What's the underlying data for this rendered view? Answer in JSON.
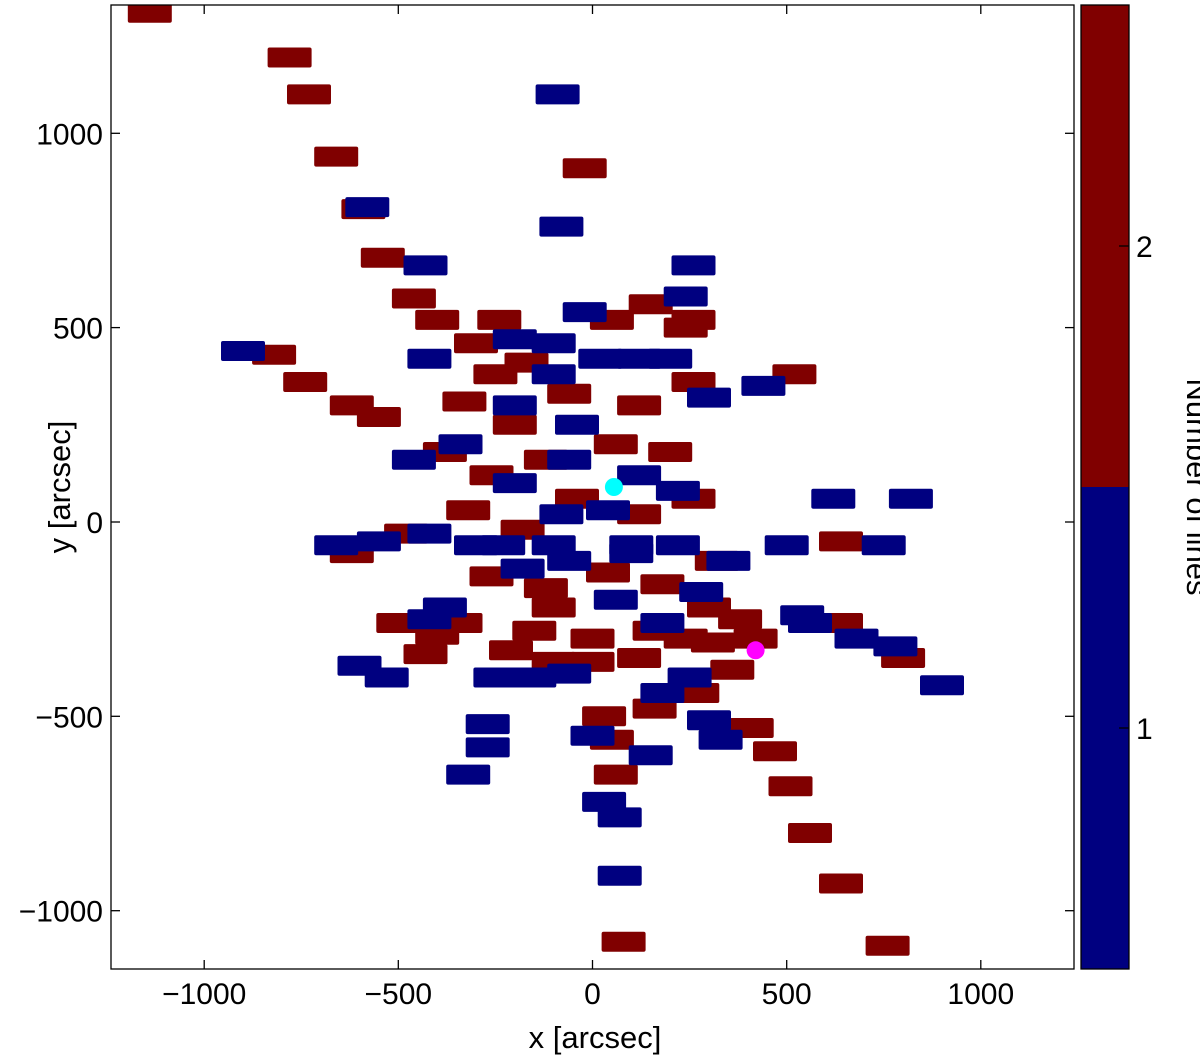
{
  "chart_data": {
    "type": "scatter",
    "title": "",
    "xlabel": "x [arcsec]",
    "ylabel": "y [arcsec]",
    "xlim": [
      -1240,
      1240
    ],
    "ylim": [
      -1150,
      1330
    ],
    "x_ticks": [
      -1000,
      -500,
      0,
      500,
      1000
    ],
    "y_ticks": [
      -1000,
      -500,
      0,
      500,
      1000
    ],
    "x_tick_labels": [
      "−1000",
      "−500",
      "0",
      "500",
      "1000"
    ],
    "y_tick_labels": [
      "−1000",
      "−500",
      "0",
      "500",
      "1000"
    ],
    "grid": false,
    "colorbar": {
      "label": "Number of lines",
      "levels": [
        {
          "value": 1,
          "label": "1",
          "color": "#000080"
        },
        {
          "value": 2,
          "label": "2",
          "color": "#800000"
        }
      ]
    },
    "colors": {
      "one_line": "#000080",
      "two_lines": "#800000"
    },
    "markers": [
      {
        "name": "cyan-marker",
        "x": 55,
        "y": 90,
        "color": "#00ffff"
      },
      {
        "name": "magenta-marker",
        "x": 420,
        "y": -330,
        "color": "#ff00ff"
      }
    ],
    "series": [
      {
        "value": 2,
        "patches": [
          [
            -1140,
            1310
          ],
          [
            -780,
            1195
          ],
          [
            -730,
            1100
          ],
          [
            -660,
            940
          ],
          [
            -590,
            805
          ],
          [
            -540,
            680
          ],
          [
            -460,
            575
          ],
          [
            -300,
            460
          ],
          [
            -250,
            380
          ],
          [
            -170,
            410
          ],
          [
            -330,
            310
          ],
          [
            -200,
            250
          ],
          [
            -60,
            330
          ],
          [
            120,
            300
          ],
          [
            -380,
            180
          ],
          [
            -260,
            120
          ],
          [
            -120,
            160
          ],
          [
            60,
            200
          ],
          [
            200,
            180
          ],
          [
            -320,
            30
          ],
          [
            -180,
            -20
          ],
          [
            -40,
            60
          ],
          [
            120,
            20
          ],
          [
            260,
            60
          ],
          [
            320,
            -100
          ],
          [
            -260,
            -140
          ],
          [
            -120,
            -170
          ],
          [
            40,
            -130
          ],
          [
            180,
            -160
          ],
          [
            300,
            -220
          ],
          [
            380,
            -250
          ],
          [
            420,
            -300
          ],
          [
            360,
            -380
          ],
          [
            -340,
            -260
          ],
          [
            -150,
            -280
          ],
          [
            0,
            -300
          ],
          [
            120,
            -350
          ],
          [
            240,
            -300
          ],
          [
            50,
            520
          ],
          [
            -240,
            520
          ],
          [
            240,
            500
          ],
          [
            -400,
            520
          ],
          [
            -820,
            430
          ],
          [
            -740,
            360
          ],
          [
            -620,
            300
          ],
          [
            -550,
            270
          ],
          [
            -620,
            -80
          ],
          [
            -480,
            -30
          ],
          [
            -500,
            -260
          ],
          [
            -400,
            -290
          ],
          [
            -430,
            -340
          ],
          [
            -210,
            -330
          ],
          [
            -100,
            -360
          ],
          [
            -100,
            -220
          ],
          [
            0,
            -360
          ],
          [
            160,
            -280
          ],
          [
            310,
            -310
          ],
          [
            270,
            -440
          ],
          [
            30,
            -500
          ],
          [
            50,
            -560
          ],
          [
            60,
            -650
          ],
          [
            160,
            -480
          ],
          [
            410,
            -530
          ],
          [
            470,
            -590
          ],
          [
            510,
            -680
          ],
          [
            560,
            -800
          ],
          [
            640,
            -930
          ],
          [
            760,
            -1090
          ],
          [
            80,
            -1080
          ],
          [
            800,
            -350
          ],
          [
            640,
            -260
          ],
          [
            640,
            -50
          ],
          [
            260,
            360
          ],
          [
            260,
            520
          ],
          [
            150,
            560
          ],
          [
            520,
            380
          ],
          [
            -20,
            910
          ]
        ]
      },
      {
        "value": 1,
        "patches": [
          [
            -90,
            1100
          ],
          [
            -80,
            760
          ],
          [
            260,
            660
          ],
          [
            240,
            580
          ],
          [
            -20,
            540
          ],
          [
            -200,
            470
          ],
          [
            -100,
            460
          ],
          [
            20,
            420
          ],
          [
            -100,
            380
          ],
          [
            120,
            420
          ],
          [
            200,
            420
          ],
          [
            440,
            350
          ],
          [
            -900,
            440
          ],
          [
            -580,
            810
          ],
          [
            -430,
            660
          ],
          [
            -340,
            200
          ],
          [
            -200,
            100
          ],
          [
            -80,
            20
          ],
          [
            40,
            30
          ],
          [
            120,
            120
          ],
          [
            220,
            80
          ],
          [
            -60,
            -100
          ],
          [
            100,
            -80
          ],
          [
            220,
            -60
          ],
          [
            -300,
            -60
          ],
          [
            -180,
            -120
          ],
          [
            60,
            -200
          ],
          [
            180,
            -260
          ],
          [
            100,
            -60
          ],
          [
            -100,
            -60
          ],
          [
            -60,
            160
          ],
          [
            -200,
            300
          ],
          [
            -40,
            250
          ],
          [
            -230,
            -60
          ],
          [
            500,
            -60
          ],
          [
            620,
            60
          ],
          [
            750,
            -60
          ],
          [
            780,
            -320
          ],
          [
            900,
            -420
          ],
          [
            680,
            -300
          ],
          [
            540,
            -240
          ],
          [
            -660,
            -60
          ],
          [
            -550,
            -50
          ],
          [
            -420,
            -30
          ],
          [
            -380,
            -220
          ],
          [
            -530,
            -400
          ],
          [
            -600,
            -370
          ],
          [
            -420,
            -250
          ],
          [
            -250,
            -400
          ],
          [
            -270,
            -520
          ],
          [
            -270,
            -580
          ],
          [
            -320,
            -650
          ],
          [
            -150,
            -400
          ],
          [
            -60,
            -390
          ],
          [
            250,
            -400
          ],
          [
            180,
            -440
          ],
          [
            300,
            -510
          ],
          [
            70,
            -760
          ],
          [
            70,
            -910
          ],
          [
            30,
            -720
          ],
          [
            150,
            -600
          ],
          [
            330,
            -560
          ],
          [
            0,
            -550
          ],
          [
            280,
            -180
          ],
          [
            350,
            -100
          ],
          [
            -460,
            160
          ],
          [
            -420,
            420
          ],
          [
            820,
            60
          ],
          [
            560,
            -260
          ],
          [
            300,
            320
          ]
        ]
      }
    ]
  }
}
